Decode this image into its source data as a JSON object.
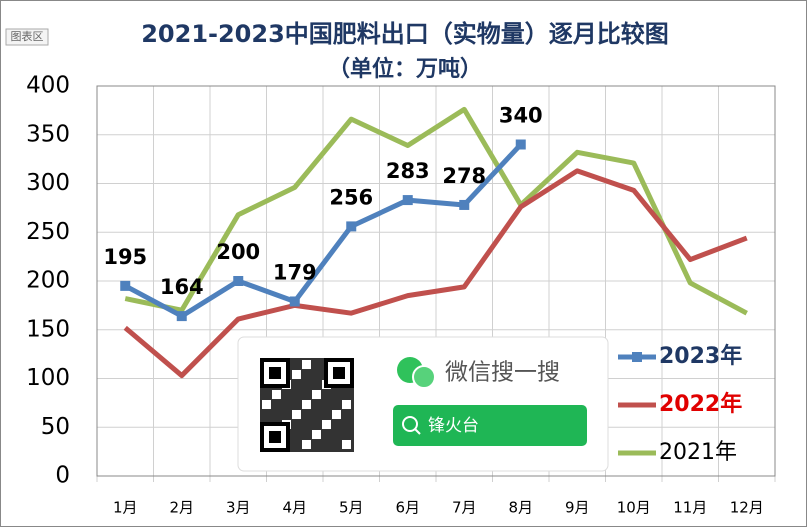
{
  "chart_data": {
    "type": "line",
    "title": "2021-2023中国肥料出口（实物量）逐月比较图",
    "subtitle": "（单位：万吨）",
    "categories": [
      "1月",
      "2月",
      "3月",
      "4月",
      "5月",
      "6月",
      "7月",
      "8月",
      "9月",
      "10月",
      "11月",
      "12月"
    ],
    "series": [
      {
        "name": "2023年",
        "color": "#4f81bd",
        "values": [
          195,
          164,
          200,
          179,
          256,
          283,
          278,
          340,
          null,
          null,
          null,
          null
        ]
      },
      {
        "name": "2022年",
        "color": "#c0504d",
        "values": [
          152,
          103,
          161,
          175,
          167,
          185,
          194,
          276,
          313,
          293,
          222,
          244
        ]
      },
      {
        "name": "2021年",
        "color": "#9bbb59",
        "values": [
          182,
          170,
          268,
          296,
          366,
          339,
          376,
          278,
          332,
          321,
          198,
          167
        ]
      }
    ],
    "ylim": [
      0,
      400
    ],
    "yticks": [
      0,
      50,
      100,
      150,
      200,
      250,
      300,
      350,
      400
    ],
    "grid": true,
    "legend": "right"
  },
  "tooltip": "图表区",
  "watermark": {
    "text": "微信搜一搜",
    "search": "锋火台"
  }
}
